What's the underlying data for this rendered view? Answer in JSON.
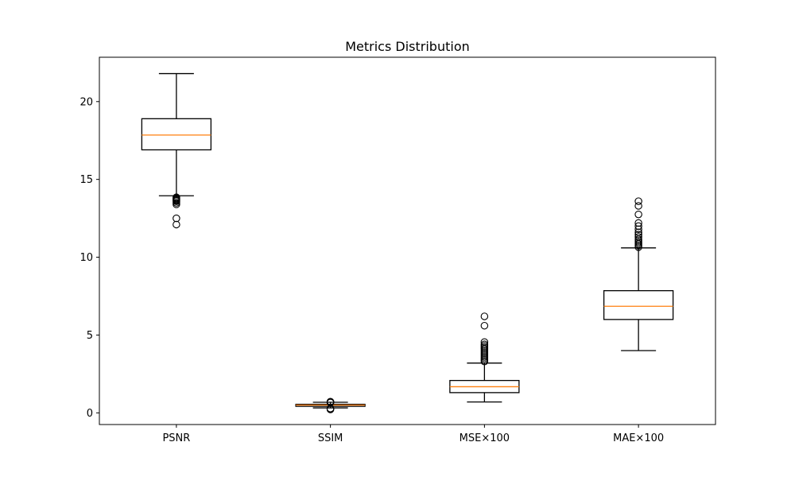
{
  "chart_data": {
    "type": "box",
    "title": "Metrics Distribution",
    "xlabel": "",
    "ylabel": "",
    "ylim": [
      -0.75,
      22.85
    ],
    "yticks": [
      0,
      5,
      10,
      15,
      20
    ],
    "grid": false,
    "colors": {
      "box": "#000000",
      "median": "#ff7f0e",
      "background": "#ffffff"
    },
    "categories": [
      "PSNR",
      "SSIM",
      "MSE×100",
      "MAE×100"
    ],
    "boxes": [
      {
        "category": "PSNR",
        "whisker_low": 13.95,
        "q1": 16.9,
        "median": 17.85,
        "q3": 18.9,
        "whisker_high": 21.8,
        "outliers": [
          13.85,
          13.8,
          13.75,
          13.7,
          13.65,
          13.6,
          13.5,
          13.4,
          12.5,
          12.1
        ]
      },
      {
        "category": "SSIM",
        "whisker_low": 0.32,
        "q1": 0.42,
        "median": 0.5,
        "q3": 0.55,
        "whisker_high": 0.68,
        "outliers": [
          0.72,
          0.7,
          0.66,
          0.28,
          0.25,
          0.22
        ]
      },
      {
        "category": "MSE×100",
        "whisker_low": 0.7,
        "q1": 1.3,
        "median": 1.68,
        "q3": 2.08,
        "whisker_high": 3.2,
        "outliers": [
          3.3,
          3.4,
          3.5,
          3.6,
          3.7,
          3.8,
          3.9,
          4.0,
          4.1,
          4.2,
          4.3,
          4.4,
          4.55,
          5.6,
          6.2
        ]
      },
      {
        "category": "MAE×100",
        "whisker_low": 4.0,
        "q1": 6.0,
        "median": 6.85,
        "q3": 7.85,
        "whisker_high": 10.6,
        "outliers": [
          10.65,
          10.75,
          10.85,
          10.95,
          11.05,
          11.15,
          11.3,
          11.45,
          11.6,
          11.8,
          12.0,
          12.2,
          12.75,
          13.3,
          13.6
        ]
      }
    ]
  }
}
